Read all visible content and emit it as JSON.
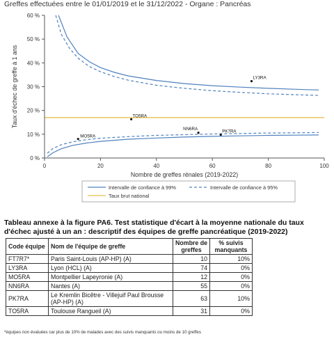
{
  "header": {
    "subtitle": "Greffes effectuées entre le 01/01/2019 et le 31/12/2022 - Organe : Pancréas"
  },
  "chart_data": {
    "type": "scatter",
    "xlabel": "Nombre de greffes rénales (2019-2022)",
    "ylabel": "Taux d'échec de greffe à 1 ans",
    "xlim": [
      0,
      100
    ],
    "ylim": [
      0,
      60
    ],
    "xticks": [
      0,
      20,
      40,
      60,
      80,
      100
    ],
    "yticks": [
      0,
      10,
      20,
      30,
      40,
      50,
      60
    ],
    "xtick_labels": [
      "0",
      "20",
      "40",
      "60",
      "80",
      "100"
    ],
    "ytick_labels": [
      "0 %",
      "10 %",
      "20 %",
      "30 %",
      "40 %",
      "50 %",
      "60 %"
    ],
    "grid": false,
    "national_rate": 17,
    "points": [
      {
        "label": "MO5RA",
        "x": 12,
        "y": 8
      },
      {
        "label": "TO5RA",
        "x": 31,
        "y": 16.3
      },
      {
        "label": "NN6RA",
        "x": 55,
        "y": 10.6
      },
      {
        "label": "PK7RA",
        "x": 63,
        "y": 9.8
      },
      {
        "label": "LY3RA",
        "x": 74,
        "y": 32.3
      }
    ],
    "series": [
      {
        "name": "Intervalle de confiance à 99%",
        "style": "solid",
        "color": "#4f81bd",
        "upper": [
          [
            5,
            60
          ],
          [
            8,
            51
          ],
          [
            12,
            44
          ],
          [
            16,
            40.5
          ],
          [
            20,
            38
          ],
          [
            25,
            36
          ],
          [
            30,
            34.5
          ],
          [
            40,
            32.6
          ],
          [
            50,
            31.3
          ],
          [
            60,
            30.4
          ],
          [
            70,
            29.8
          ],
          [
            80,
            29.3
          ],
          [
            90,
            28.9
          ],
          [
            98,
            28.6
          ]
        ],
        "lower": [
          [
            1,
            0.5
          ],
          [
            3,
            2.2
          ],
          [
            6,
            3.9
          ],
          [
            10,
            5.3
          ],
          [
            15,
            6.3
          ],
          [
            20,
            7
          ],
          [
            30,
            7.9
          ],
          [
            40,
            8.4
          ],
          [
            50,
            8.8
          ],
          [
            60,
            9.1
          ],
          [
            70,
            9.3
          ],
          [
            80,
            9.5
          ],
          [
            90,
            9.6
          ],
          [
            98,
            9.7
          ]
        ]
      },
      {
        "name": "Intervalle de confiance à 95%",
        "style": "dashed",
        "color": "#4f81bd",
        "upper": [
          [
            4,
            60
          ],
          [
            6,
            52
          ],
          [
            9,
            46
          ],
          [
            12,
            42
          ],
          [
            16,
            38.5
          ],
          [
            20,
            36.3
          ],
          [
            25,
            34.2
          ],
          [
            30,
            32.7
          ],
          [
            40,
            30.6
          ],
          [
            50,
            29.3
          ],
          [
            60,
            28.3
          ],
          [
            70,
            27.6
          ],
          [
            80,
            27
          ],
          [
            90,
            26.6
          ],
          [
            98,
            26.3
          ]
        ],
        "lower": [
          [
            1,
            2
          ],
          [
            3,
            4
          ],
          [
            6,
            5.6
          ],
          [
            10,
            6.8
          ],
          [
            15,
            7.7
          ],
          [
            20,
            8.3
          ],
          [
            30,
            9
          ],
          [
            40,
            9.5
          ],
          [
            50,
            9.8
          ],
          [
            60,
            10.1
          ],
          [
            70,
            10.3
          ],
          [
            80,
            10.5
          ],
          [
            90,
            10.6
          ],
          [
            98,
            10.7
          ]
        ]
      }
    ],
    "national_label": "Taux brut national",
    "colors": {
      "ci": "#4f81bd",
      "national": "#e6bf52",
      "points": "#111111",
      "axis": "#555555"
    }
  },
  "table": {
    "title": "Tableau annexe à la figure PA6. Test statistique d'écart à la moyenne nationale du taux d'échec ajusté à un an : descriptif des équipes de greffe pancréatique (2019-2022)",
    "headers": [
      "Code équipe",
      "Nom de l'équipe de greffe",
      "Nombre de greffes",
      "% suivis manquants"
    ],
    "rows": [
      {
        "code": "FT7R7*",
        "name": "Paris Saint-Louis (AP-HP) (A)",
        "n": "10",
        "pct": "10%"
      },
      {
        "code": "LY3RA",
        "name": "Lyon (HCL) (A)",
        "n": "74",
        "pct": "0%"
      },
      {
        "code": "MO5RA",
        "name": "Montpellier Lapeyronie (A)",
        "n": "12",
        "pct": "0%"
      },
      {
        "code": "NN6RA",
        "name": "Nantes (A)",
        "n": "55",
        "pct": "0%"
      },
      {
        "code": "PK7RA",
        "name": "Le Kremlin Bicêtre - Villejuif Paul Brousse (AP-HP) (A)",
        "n": "63",
        "pct": "10%"
      },
      {
        "code": "TO5RA",
        "name": "Toulouse Rangueil (A)",
        "n": "31",
        "pct": "0%"
      }
    ]
  },
  "footnote": "*équipes non évaluées car plus de 10% de malades avec des suivis manquants ou moins de 10 greffes"
}
